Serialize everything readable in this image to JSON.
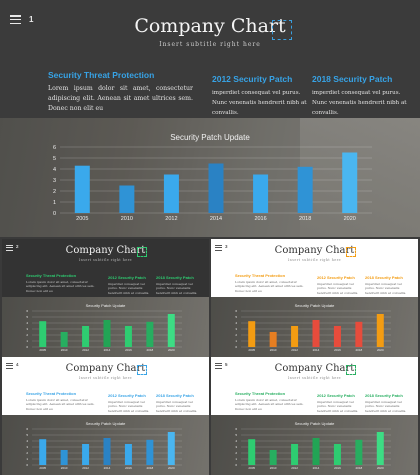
{
  "main": {
    "page_number": "1",
    "title": "Company Chart",
    "subtitle": "Insert subtitle right here",
    "col1": {
      "heading": "Security Threat Protection",
      "body": "Lorem ipsum dolor sit amet, consectetur adipiscing elit. Aenean sit amet ultrices sem. Donec non elit eu"
    },
    "col2": {
      "heading": "2012 Security Patch",
      "body": "imperdiet consequat vel purus. Nunc venenatis hendrerit nibh at convallis."
    },
    "col3": {
      "heading": "2018 Security Patch",
      "body": "imperdiet consequat vel purus. Nunc venenatis hendrerit nibh at convallis."
    },
    "chart_title": "Security Patch Update"
  },
  "chart_data": {
    "type": "bar",
    "title": "Security Patch Update",
    "categories": [
      "2005",
      "2010",
      "2012",
      "2014",
      "2016",
      "2018",
      "2020"
    ],
    "values": [
      4.3,
      2.5,
      3.5,
      4.5,
      3.5,
      4.2,
      5.5
    ],
    "ylim": [
      0,
      6
    ],
    "yticks": [
      "0",
      "1",
      "2",
      "3",
      "4",
      "5",
      "6"
    ],
    "grid": true
  },
  "colors": {
    "accent": "#37a3e6",
    "bar_main": [
      "#3aa9ec",
      "#2f93d6",
      "#3aa9ec",
      "#2a82c4",
      "#3aa9ec",
      "#2f93d6",
      "#4ab6f0"
    ]
  },
  "thumbs": [
    {
      "num": "2",
      "theme": "dark",
      "accent": "#2ecc71",
      "bar_colors": [
        "#2ecc71",
        "#27ae60",
        "#2ecc71",
        "#22a455",
        "#2ecc71",
        "#27ae60",
        "#3ddc84"
      ]
    },
    {
      "num": "3",
      "theme": "light",
      "accent": "#f39c12",
      "bar_colors": [
        "#f39c12",
        "#e67e22",
        "#f39c12",
        "#e74c3c",
        "#e74c3c",
        "#e74c3c",
        "#f39c12"
      ]
    },
    {
      "num": "4",
      "theme": "light",
      "accent": "#37a3e6",
      "bar_colors": [
        "#3aa9ec",
        "#2f93d6",
        "#3aa9ec",
        "#2a82c4",
        "#3aa9ec",
        "#2f93d6",
        "#4ab6f0"
      ]
    },
    {
      "num": "5",
      "theme": "light",
      "accent": "#27ae60",
      "bar_colors": [
        "#2ecc71",
        "#27ae60",
        "#2ecc71",
        "#22a455",
        "#2ecc71",
        "#27ae60",
        "#3ddc84"
      ]
    }
  ]
}
